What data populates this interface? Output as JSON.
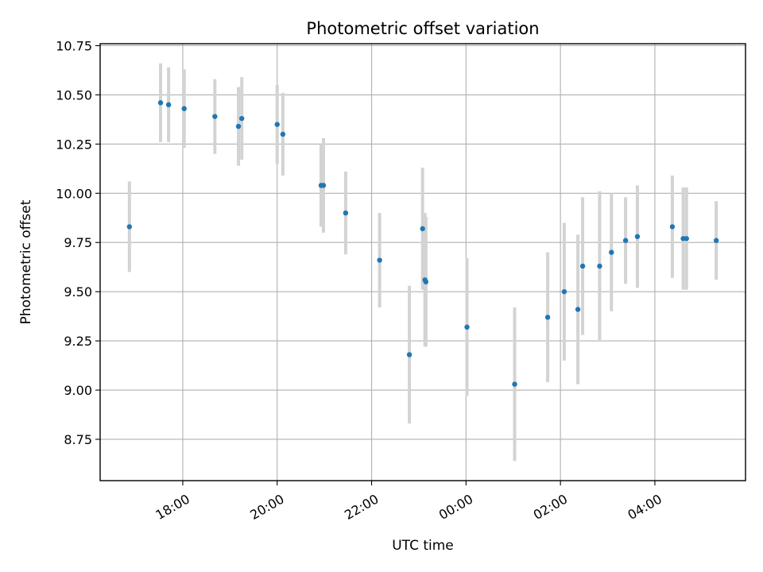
{
  "chart_data": {
    "type": "scatter",
    "title": "Photometric offset variation",
    "xlabel": "UTC time",
    "ylabel": "Photometric offset",
    "grid": true,
    "xlim_hours": [
      16.25,
      29.92
    ],
    "ylim": [
      8.54,
      10.76
    ],
    "x_ticks": [
      {
        "hours": 18,
        "label": "18:00"
      },
      {
        "hours": 20,
        "label": "20:00"
      },
      {
        "hours": 22,
        "label": "22:00"
      },
      {
        "hours": 24,
        "label": "00:00"
      },
      {
        "hours": 26,
        "label": "02:00"
      },
      {
        "hours": 28,
        "label": "04:00"
      }
    ],
    "y_ticks": [
      {
        "value": 8.75,
        "label": "8.75"
      },
      {
        "value": 9.0,
        "label": "9.00"
      },
      {
        "value": 9.25,
        "label": "9.25"
      },
      {
        "value": 9.5,
        "label": "9.50"
      },
      {
        "value": 9.75,
        "label": "9.75"
      },
      {
        "value": 10.0,
        "label": "10.00"
      },
      {
        "value": 10.25,
        "label": "10.25"
      },
      {
        "value": 10.5,
        "label": "10.50"
      },
      {
        "value": 10.75,
        "label": "10.75"
      }
    ],
    "marker_color": "#1f77b4",
    "errorbar_color": "#d3d3d3",
    "points": [
      {
        "t": 16.87,
        "y": 9.83,
        "err": 0.23
      },
      {
        "t": 17.53,
        "y": 10.46,
        "err": 0.2
      },
      {
        "t": 17.7,
        "y": 10.45,
        "err": 0.19
      },
      {
        "t": 18.03,
        "y": 10.43,
        "err": 0.2
      },
      {
        "t": 18.68,
        "y": 10.39,
        "err": 0.19
      },
      {
        "t": 19.18,
        "y": 10.34,
        "err": 0.2
      },
      {
        "t": 19.25,
        "y": 10.38,
        "err": 0.21
      },
      {
        "t": 20.0,
        "y": 10.35,
        "err": 0.2
      },
      {
        "t": 20.12,
        "y": 10.3,
        "err": 0.21
      },
      {
        "t": 20.93,
        "y": 10.04,
        "err": 0.21
      },
      {
        "t": 20.98,
        "y": 10.04,
        "err": 0.24
      },
      {
        "t": 21.45,
        "y": 9.9,
        "err": 0.21
      },
      {
        "t": 22.17,
        "y": 9.66,
        "err": 0.24
      },
      {
        "t": 22.8,
        "y": 9.18,
        "err": 0.35
      },
      {
        "t": 23.08,
        "y": 9.82,
        "err": 0.31
      },
      {
        "t": 23.13,
        "y": 9.56,
        "err": 0.34
      },
      {
        "t": 23.15,
        "y": 9.55,
        "err": 0.33
      },
      {
        "t": 24.02,
        "y": 9.32,
        "err": 0.35
      },
      {
        "t": 25.03,
        "y": 9.03,
        "err": 0.39
      },
      {
        "t": 25.73,
        "y": 9.37,
        "err": 0.33
      },
      {
        "t": 26.08,
        "y": 9.5,
        "err": 0.35
      },
      {
        "t": 26.37,
        "y": 9.41,
        "err": 0.38
      },
      {
        "t": 26.47,
        "y": 9.63,
        "err": 0.35
      },
      {
        "t": 26.83,
        "y": 9.63,
        "err": 0.38
      },
      {
        "t": 27.08,
        "y": 9.7,
        "err": 0.3
      },
      {
        "t": 27.38,
        "y": 9.76,
        "err": 0.22
      },
      {
        "t": 27.63,
        "y": 9.78,
        "err": 0.26
      },
      {
        "t": 28.37,
        "y": 9.83,
        "err": 0.26
      },
      {
        "t": 28.6,
        "y": 9.77,
        "err": 0.26
      },
      {
        "t": 28.67,
        "y": 9.77,
        "err": 0.26
      },
      {
        "t": 29.3,
        "y": 9.76,
        "err": 0.2
      }
    ]
  }
}
